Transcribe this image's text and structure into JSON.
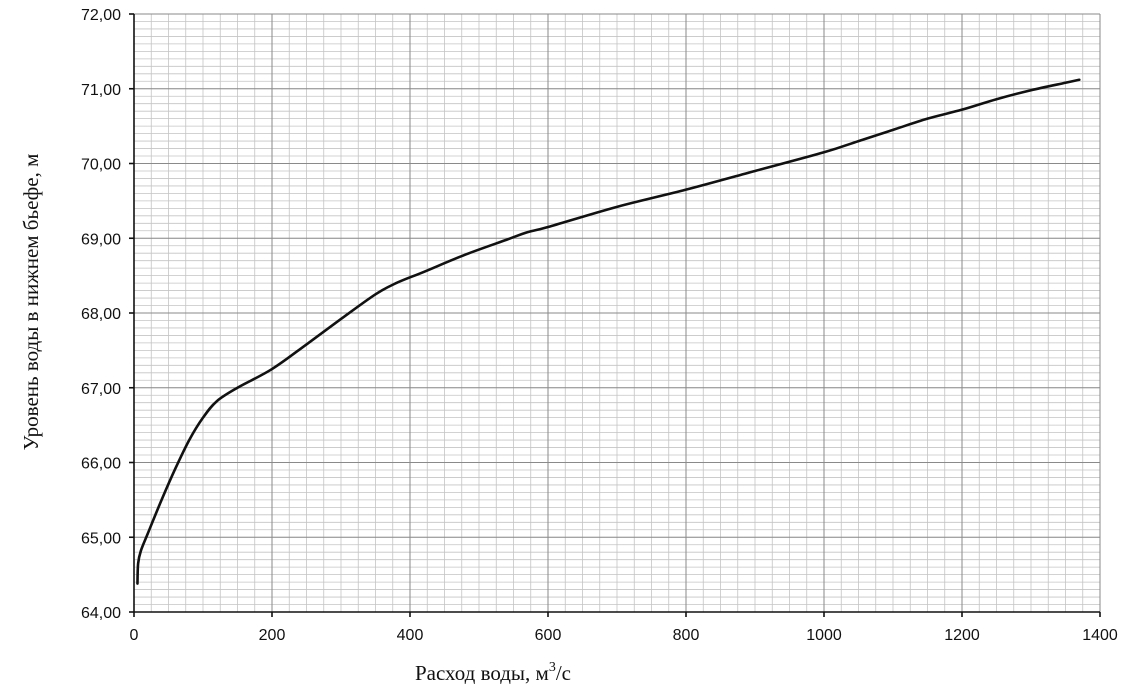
{
  "chart_data": {
    "type": "line",
    "title": "",
    "xlabel": "Расход воды, м",
    "xlabel_sup": "3",
    "xlabel_suffix": "/с",
    "ylabel": "Уровень воды в нижнем бьефе, м",
    "xlim": [
      0,
      1400
    ],
    "ylim": [
      64,
      72
    ],
    "x_ticks": [
      0,
      200,
      400,
      600,
      800,
      1000,
      1200,
      1400
    ],
    "x_tick_labels": [
      "0",
      "200",
      "400",
      "600",
      "800",
      "1000",
      "1200",
      "1400"
    ],
    "y_ticks": [
      64,
      65,
      66,
      67,
      68,
      69,
      70,
      71,
      72
    ],
    "y_tick_labels": [
      "64,00",
      "65,00",
      "66,00",
      "67,00",
      "68,00",
      "69,00",
      "70,00",
      "71,00",
      "72,00"
    ],
    "x_minor_step": 25,
    "y_minor_step": 0.1,
    "grid": true,
    "legend": "none",
    "series": [
      {
        "color": "#111111",
        "x": [
          5,
          6,
          10,
          20,
          40,
          60,
          80,
          100,
          120,
          150,
          200,
          250,
          300,
          350,
          380,
          420,
          480,
          540,
          570,
          600,
          700,
          800,
          900,
          1000,
          1050,
          1100,
          1150,
          1200,
          1250,
          1300,
          1350,
          1370
        ],
        "y": [
          64.38,
          64.65,
          64.82,
          65.05,
          65.5,
          65.92,
          66.3,
          66.6,
          66.82,
          67.0,
          67.25,
          67.58,
          67.92,
          68.25,
          68.4,
          68.55,
          68.78,
          68.98,
          69.08,
          69.15,
          69.42,
          69.65,
          69.9,
          70.15,
          70.3,
          70.45,
          70.6,
          70.72,
          70.86,
          70.98,
          71.08,
          71.12
        ]
      }
    ]
  }
}
